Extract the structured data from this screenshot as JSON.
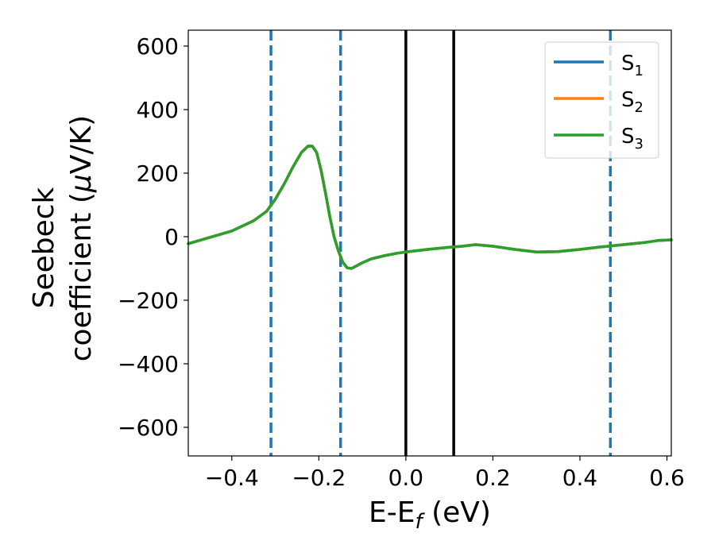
{
  "chart_data": {
    "type": "line",
    "title": "",
    "xlabel": "E-E_f (eV)",
    "xlabel_main": "E-E",
    "xlabel_sub": "f",
    "xlabel_tail": " (eV)",
    "ylabel": "Seebeck coefficient (μV/K)",
    "ylabel_line1": "Seebeck",
    "ylabel_line2_prefix": "coefficient  (",
    "ylabel_line2_mu": "μ",
    "ylabel_line2_suffix": "V/K)",
    "xlim": [
      -0.5,
      0.61
    ],
    "ylim": [
      -690,
      650
    ],
    "xticks": [
      -0.4,
      -0.2,
      0.0,
      0.2,
      0.4,
      0.6
    ],
    "xtick_labels": [
      "−0.4",
      "−0.2",
      "0.0",
      "0.2",
      "0.4",
      "0.6"
    ],
    "yticks": [
      -600,
      -400,
      -200,
      0,
      200,
      400,
      600
    ],
    "ytick_labels": [
      "−600",
      "−400",
      "−200",
      "0",
      "200",
      "400",
      "600"
    ],
    "grid": false,
    "legend_position": "top-right",
    "series": [
      {
        "name": "S_1",
        "label_main": "S",
        "label_sub": "1",
        "color": "#1f77b4",
        "x": [
          -0.5,
          -0.45,
          -0.4,
          -0.35,
          -0.32,
          -0.3,
          -0.28,
          -0.26,
          -0.24,
          -0.225,
          -0.215,
          -0.205,
          -0.195,
          -0.185,
          -0.175,
          -0.165,
          -0.155,
          -0.145,
          -0.135,
          -0.125,
          -0.115,
          -0.1,
          -0.08,
          -0.05,
          -0.02,
          0.0,
          0.05,
          0.1,
          0.13,
          0.16,
          0.2,
          0.25,
          0.3,
          0.35,
          0.4,
          0.45,
          0.5,
          0.55,
          0.58,
          0.61
        ],
        "y": [
          -22,
          -2,
          18,
          50,
          80,
          118,
          165,
          218,
          265,
          285,
          285,
          265,
          210,
          140,
          65,
          0,
          -45,
          -80,
          -98,
          -100,
          -93,
          -82,
          -70,
          -60,
          -52,
          -48,
          -40,
          -33,
          -30,
          -25,
          -30,
          -40,
          -48,
          -47,
          -40,
          -32,
          -25,
          -18,
          -12,
          -10
        ]
      },
      {
        "name": "S_2",
        "label_main": "S",
        "label_sub": "2",
        "color": "#ff7f0e",
        "x": [
          -0.5,
          -0.45,
          -0.4,
          -0.35,
          -0.32,
          -0.3,
          -0.28,
          -0.26,
          -0.24,
          -0.225,
          -0.215,
          -0.205,
          -0.195,
          -0.185,
          -0.175,
          -0.165,
          -0.155,
          -0.145,
          -0.135,
          -0.125,
          -0.115,
          -0.1,
          -0.08,
          -0.05,
          -0.02,
          0.0,
          0.05,
          0.1,
          0.13,
          0.16,
          0.2,
          0.25,
          0.3,
          0.35,
          0.4,
          0.45,
          0.5,
          0.55,
          0.58,
          0.61
        ],
        "y": [
          -22,
          -2,
          18,
          50,
          80,
          118,
          165,
          218,
          265,
          285,
          285,
          265,
          210,
          140,
          65,
          0,
          -45,
          -80,
          -98,
          -100,
          -93,
          -82,
          -70,
          -60,
          -52,
          -48,
          -40,
          -33,
          -30,
          -25,
          -30,
          -40,
          -48,
          -47,
          -40,
          -32,
          -25,
          -18,
          -12,
          -10
        ]
      },
      {
        "name": "S_3",
        "label_main": "S",
        "label_sub": "3",
        "color": "#2ca02c",
        "x": [
          -0.5,
          -0.45,
          -0.4,
          -0.35,
          -0.32,
          -0.3,
          -0.28,
          -0.26,
          -0.24,
          -0.225,
          -0.215,
          -0.205,
          -0.195,
          -0.185,
          -0.175,
          -0.165,
          -0.155,
          -0.145,
          -0.135,
          -0.125,
          -0.115,
          -0.1,
          -0.08,
          -0.05,
          -0.02,
          0.0,
          0.05,
          0.1,
          0.13,
          0.16,
          0.2,
          0.25,
          0.3,
          0.35,
          0.4,
          0.45,
          0.5,
          0.55,
          0.58,
          0.61
        ],
        "y": [
          -22,
          -2,
          18,
          50,
          80,
          118,
          165,
          218,
          265,
          285,
          285,
          265,
          210,
          140,
          65,
          0,
          -45,
          -80,
          -98,
          -100,
          -93,
          -82,
          -70,
          -60,
          -52,
          -48,
          -40,
          -33,
          -30,
          -25,
          -30,
          -40,
          -48,
          -47,
          -40,
          -32,
          -25,
          -18,
          -12,
          -10
        ]
      }
    ],
    "vertical_lines": [
      {
        "x": -0.31,
        "style": "dashed",
        "color": "#1f77b4"
      },
      {
        "x": -0.15,
        "style": "dashed",
        "color": "#1f77b4"
      },
      {
        "x": 0.0,
        "style": "solid",
        "color": "#000000"
      },
      {
        "x": 0.11,
        "style": "solid",
        "color": "#000000"
      },
      {
        "x": 0.47,
        "style": "dashed",
        "color": "#1f77b4"
      }
    ]
  }
}
